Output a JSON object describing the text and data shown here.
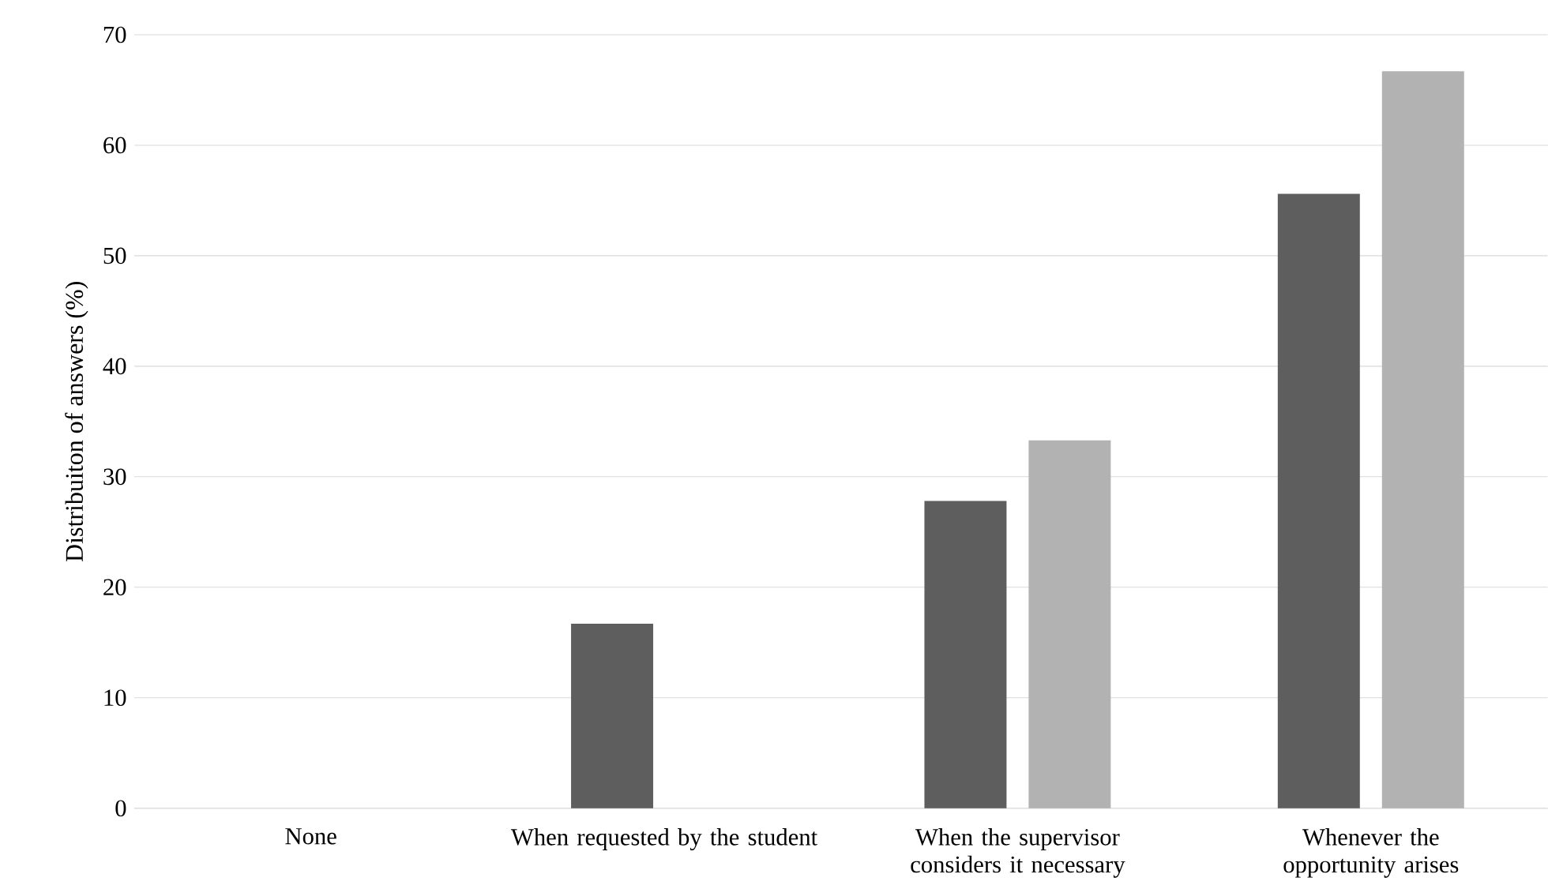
{
  "chart_data": {
    "type": "bar",
    "ylabel": "Distribuiton of answers (%)",
    "categories": [
      "None",
      "When requested by the student",
      "When the supervisor considers it necessary",
      "Whenever the opportunity arises"
    ],
    "series": [
      {
        "color": "#5e5e5e",
        "values": [
          0,
          16.7,
          27.8,
          55.6
        ]
      },
      {
        "color": "#b2b2b2",
        "values": [
          0,
          0,
          33.3,
          66.7
        ]
      }
    ],
    "ylim": [
      0,
      70
    ],
    "yticks": [
      0,
      10,
      20,
      30,
      40,
      50,
      60,
      70
    ],
    "grid": "y"
  }
}
